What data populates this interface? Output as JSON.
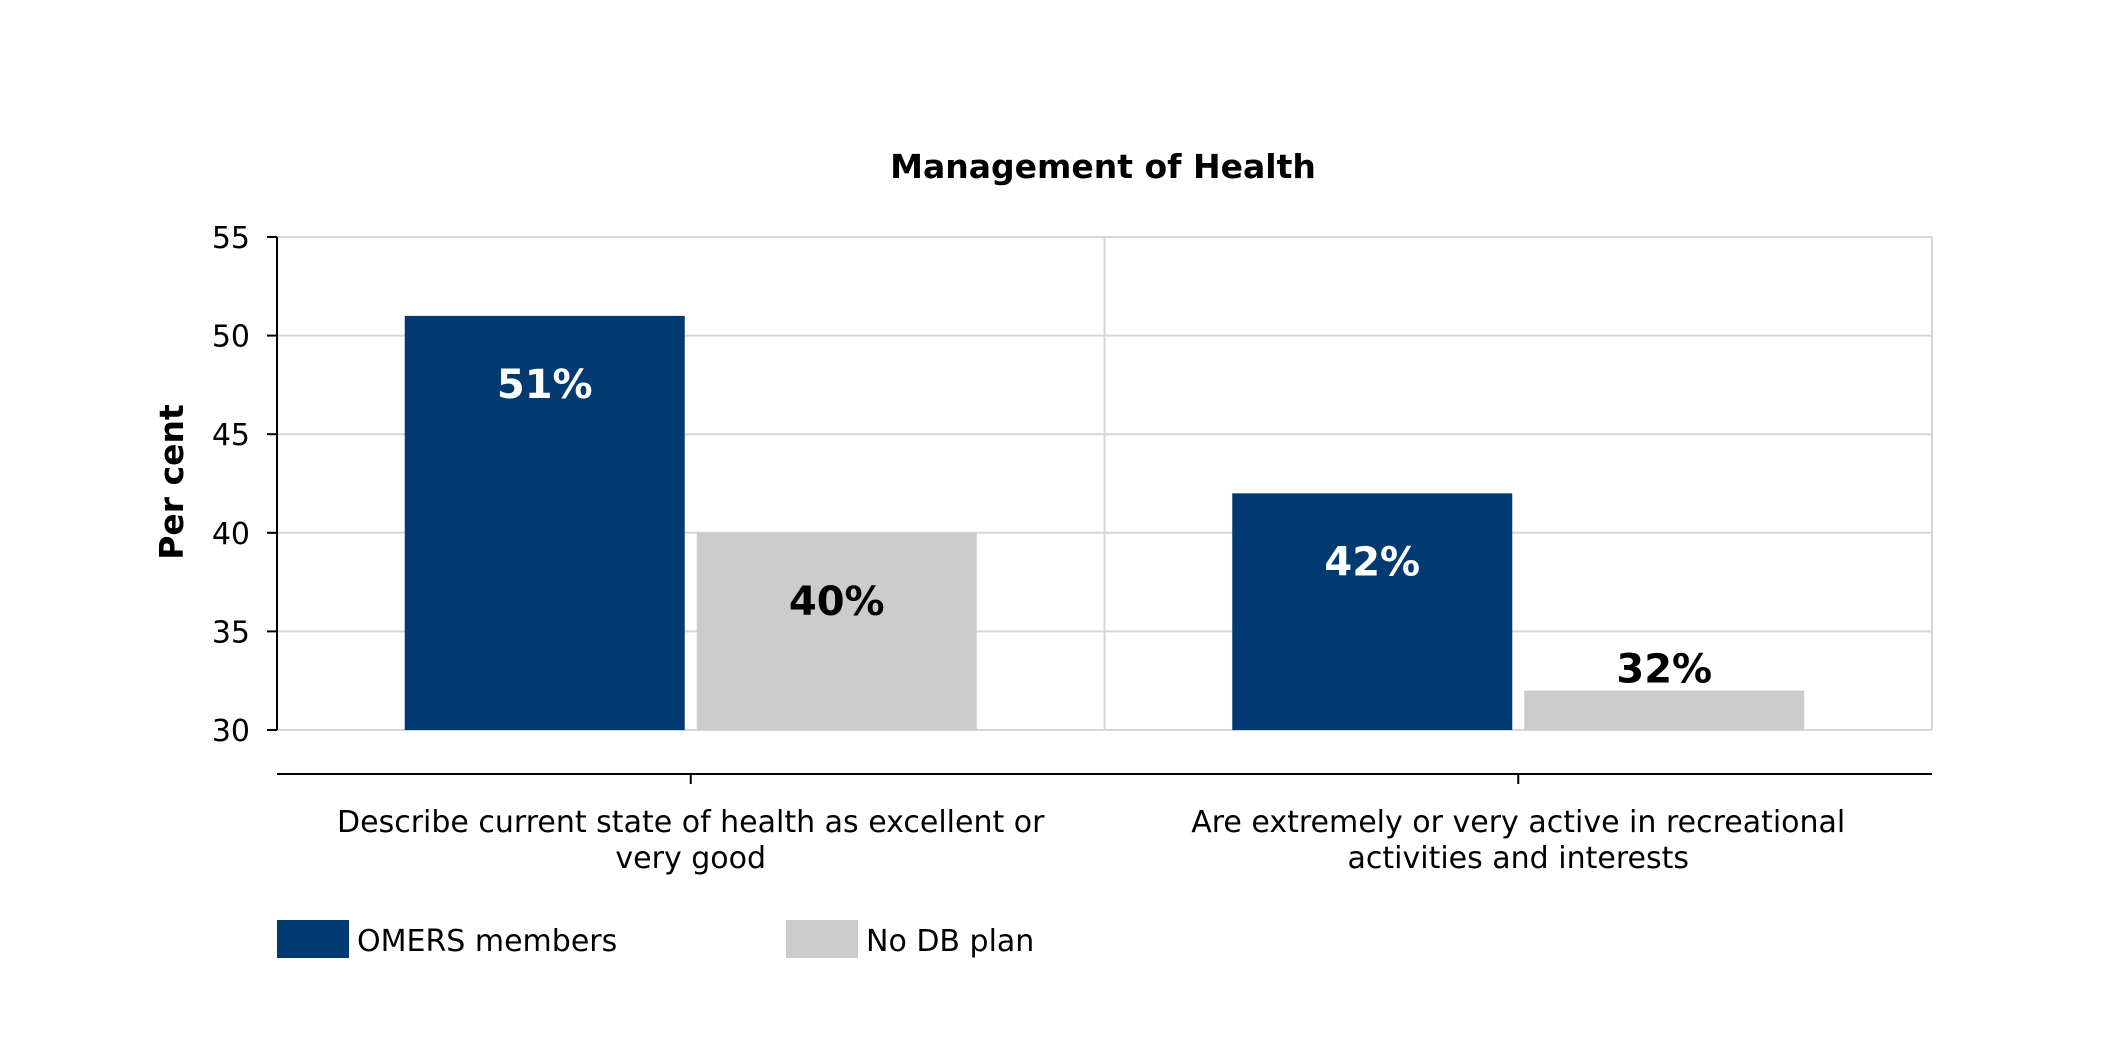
{
  "chart_data": {
    "type": "bar",
    "title": "Management of Health",
    "ylabel": "Per cent",
    "xlabel": "",
    "ylim": [
      30,
      55
    ],
    "yticks": [
      30,
      35,
      40,
      45,
      50,
      55
    ],
    "categories": [
      [
        "Describe current state of health as excellent or",
        "very good"
      ],
      [
        "Are extremely or very active in recreational",
        "activities and interests"
      ]
    ],
    "series": [
      {
        "name": "OMERS members",
        "values": [
          51,
          42
        ],
        "labels": [
          "51%",
          "42%"
        ],
        "color": "#003a70",
        "label_color": "#ffffff"
      },
      {
        "name": "No DB plan",
        "values": [
          40,
          32
        ],
        "labels": [
          "40%",
          "32%"
        ],
        "color": "#cccccc",
        "label_color": "#000000"
      }
    ],
    "grid": true,
    "legend_position": "bottom-left"
  }
}
